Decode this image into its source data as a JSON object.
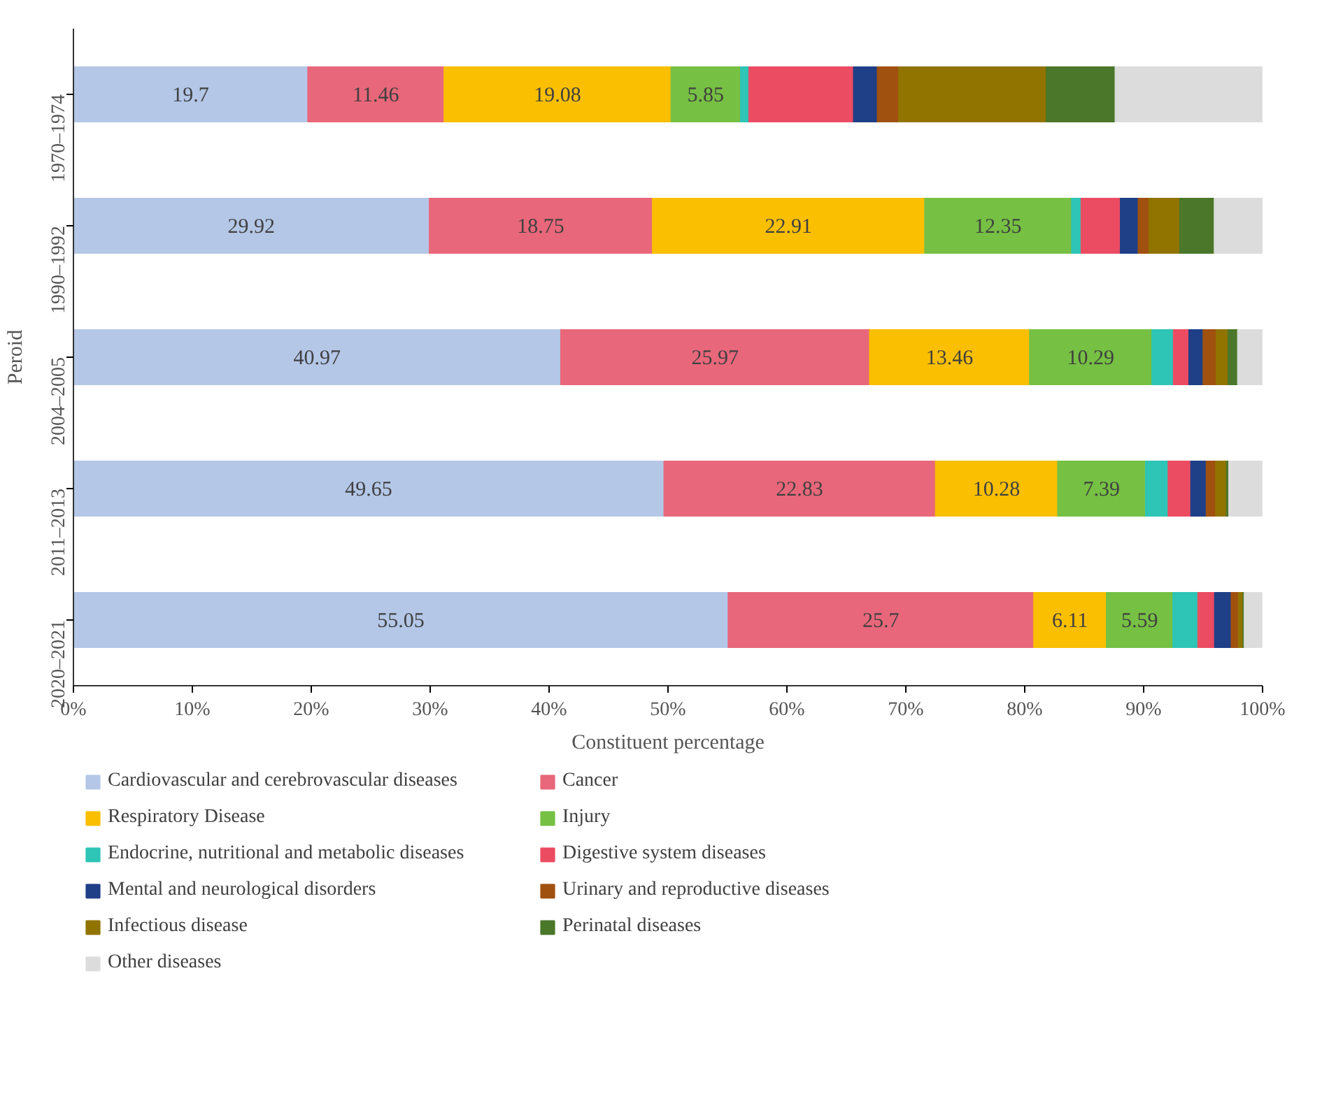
{
  "chart_data": {
    "type": "bar",
    "orientation": "horizontal",
    "stacked": true,
    "categories": [
      "1970–1974",
      "1990–1992",
      "2004–2005",
      "2011–2013",
      "2020–2021"
    ],
    "xlabel": "Constituent percentage",
    "ylabel": "Peroid",
    "xlim": [
      0,
      100
    ],
    "xticks": [
      {
        "value": 0,
        "label": "0%"
      },
      {
        "value": 10,
        "label": "10%"
      },
      {
        "value": 20,
        "label": "20%"
      },
      {
        "value": 30,
        "label": "30%"
      },
      {
        "value": 40,
        "label": "40%"
      },
      {
        "value": 50,
        "label": "50%"
      },
      {
        "value": 60,
        "label": "60%"
      },
      {
        "value": 70,
        "label": "70%"
      },
      {
        "value": 80,
        "label": "80%"
      },
      {
        "value": 90,
        "label": "90%"
      },
      {
        "value": 100,
        "label": "100%"
      }
    ],
    "legend": "bottom",
    "series": [
      {
        "name": "Cardiovascular and cerebrovascular diseases",
        "color": "#b4c7e7",
        "values": [
          19.7,
          29.92,
          40.97,
          49.65,
          55.05
        ],
        "value_labels": [
          "19.7",
          "29.92",
          "40.97",
          "49.65",
          "55.05"
        ]
      },
      {
        "name": "Cancer",
        "color": "#e8677a",
        "values": [
          11.46,
          18.75,
          25.97,
          22.83,
          25.7
        ],
        "value_labels": [
          "11.46",
          "18.75",
          "25.97",
          "22.83",
          "25.7"
        ]
      },
      {
        "name": "Respiratory Disease",
        "color": "#f9bf00",
        "values": [
          19.08,
          22.91,
          13.46,
          10.28,
          6.11
        ],
        "value_labels": [
          "19.08",
          "22.91",
          "13.46",
          "10.28",
          "6.11"
        ]
      },
      {
        "name": "Injury",
        "color": "#76c043",
        "values": [
          5.85,
          12.35,
          10.29,
          7.39,
          5.59
        ],
        "value_labels": [
          "5.85",
          "12.35",
          "10.29",
          "7.39",
          "5.59"
        ]
      },
      {
        "name": "Endocrine, nutritional and metabolic diseases",
        "color": "#2ec4b6",
        "values": [
          0.7,
          0.8,
          1.8,
          1.9,
          2.1
        ]
      },
      {
        "name": "Digestive system diseases",
        "color": "#ec4c62",
        "values": [
          8.8,
          3.3,
          1.3,
          1.9,
          1.4
        ]
      },
      {
        "name": "Mental and neurological disorders",
        "color": "#1f3f87",
        "values": [
          2.0,
          1.5,
          1.2,
          1.3,
          1.4
        ]
      },
      {
        "name": "Urinary and reproductive diseases",
        "color": "#a0510f",
        "values": [
          1.8,
          0.9,
          1.1,
          0.8,
          0.6
        ]
      },
      {
        "name": "Infectious disease",
        "color": "#917300",
        "values": [
          12.4,
          2.6,
          1.0,
          0.9,
          0.4
        ]
      },
      {
        "name": "Perinatal diseases",
        "color": "#4a7729",
        "values": [
          5.8,
          2.9,
          0.8,
          0.2,
          0.1
        ]
      },
      {
        "name": "Other diseases",
        "color": "#dcdcdc",
        "values": [
          12.4,
          4.1,
          2.1,
          2.8,
          1.5
        ]
      }
    ]
  }
}
